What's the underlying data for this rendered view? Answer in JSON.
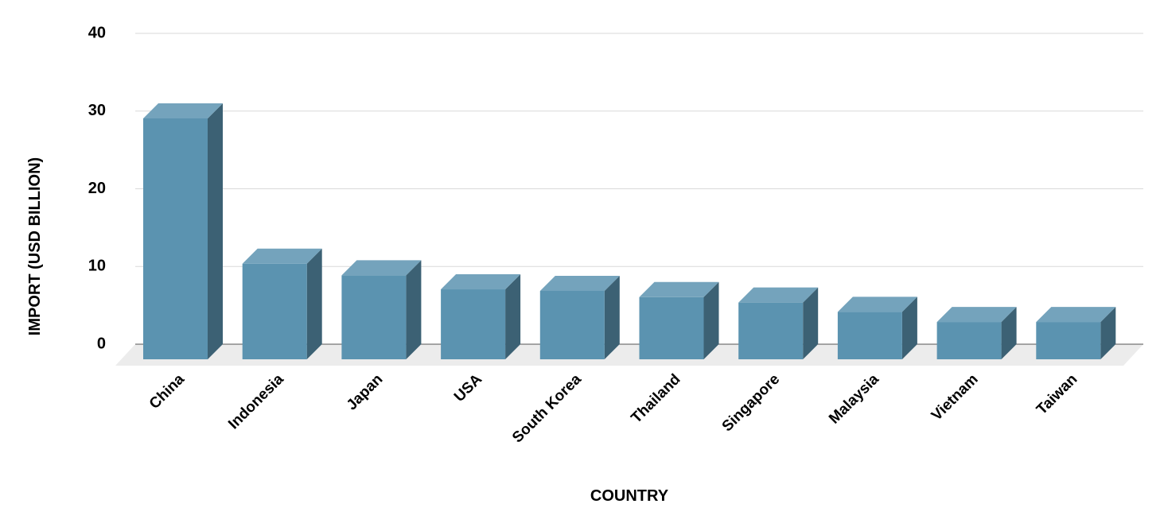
{
  "chart_data": {
    "type": "bar3d",
    "x_label": "COUNTRY",
    "y_label": "IMPORT (USD BILLION)",
    "categories": [
      "China",
      "Indonesia",
      "Japan",
      "USA",
      "South Korea",
      "Thailand",
      "Singapore",
      "Malaysia",
      "Vietnam",
      "Taiwan"
    ],
    "values": [
      31,
      12.3,
      10.8,
      9.0,
      8.8,
      8.0,
      7.3,
      6.1,
      4.8,
      4.8
    ],
    "color": "#5b93b0",
    "ylim": [
      0,
      40
    ],
    "yticks": [
      0,
      10,
      20,
      30,
      40
    ],
    "grid": true
  }
}
